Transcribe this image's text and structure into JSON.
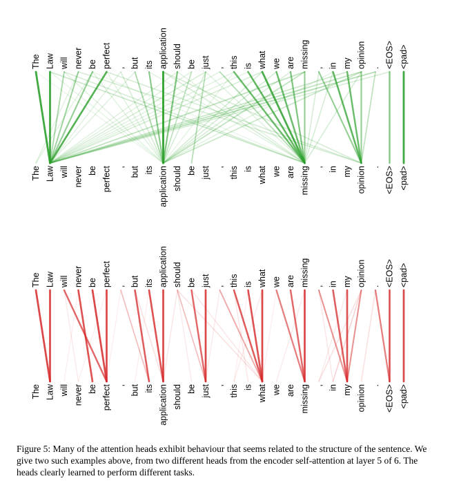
{
  "tokens": [
    "The",
    "Law",
    "will",
    "never",
    "be",
    "perfect",
    ",",
    "but",
    "its",
    "application",
    "should",
    "be",
    "just",
    ",",
    "this",
    "is",
    "what",
    "we",
    "are",
    "missing",
    ",",
    "in",
    "my",
    "opinion",
    ".",
    "<EOS>",
    "<pad>"
  ],
  "caption": "Figure 5: Many of the attention heads exhibit behaviour that seems related to the structure of the sentence. We give two such examples above, from two different heads from the encoder self-attention at layer 5 of 6. The heads clearly learned to perform different tasks.",
  "heads": [
    {
      "color": "#2ca02c",
      "edges": [
        [
          0,
          1,
          0.9
        ],
        [
          1,
          1,
          0.9
        ],
        [
          2,
          1,
          0.4
        ],
        [
          3,
          1,
          0.45
        ],
        [
          4,
          1,
          0.5
        ],
        [
          5,
          1,
          0.8
        ],
        [
          3,
          0,
          0.15
        ],
        [
          4,
          0,
          0.15
        ],
        [
          6,
          9,
          0.2
        ],
        [
          7,
          9,
          0.4
        ],
        [
          8,
          9,
          0.55
        ],
        [
          9,
          9,
          0.95
        ],
        [
          10,
          9,
          0.6
        ],
        [
          12,
          11,
          0.35
        ],
        [
          11,
          9,
          0.3
        ],
        [
          13,
          19,
          0.35
        ],
        [
          14,
          19,
          0.7
        ],
        [
          15,
          19,
          0.75
        ],
        [
          16,
          19,
          0.85
        ],
        [
          17,
          19,
          0.7
        ],
        [
          18,
          19,
          0.6
        ],
        [
          19,
          19,
          0.5
        ],
        [
          20,
          23,
          0.5
        ],
        [
          21,
          23,
          0.75
        ],
        [
          22,
          23,
          0.7
        ],
        [
          23,
          23,
          0.5
        ],
        [
          24,
          23,
          0.3
        ],
        [
          25,
          25,
          0.6
        ],
        [
          26,
          26,
          0.9
        ],
        [
          20,
          19,
          0.2
        ],
        [
          21,
          19,
          0.2
        ],
        [
          23,
          19,
          0.2
        ],
        [
          1,
          19,
          0.25
        ],
        [
          2,
          19,
          0.2
        ],
        [
          3,
          23,
          0.2
        ],
        [
          5,
          23,
          0.2
        ],
        [
          9,
          23,
          0.2
        ],
        [
          9,
          19,
          0.2
        ],
        [
          12,
          1,
          0.2
        ],
        [
          13,
          1,
          0.15
        ],
        [
          14,
          1,
          0.15
        ],
        [
          15,
          1,
          0.15
        ],
        [
          16,
          1,
          0.2
        ],
        [
          17,
          9,
          0.2
        ],
        [
          18,
          9,
          0.2
        ],
        [
          19,
          1,
          0.3
        ],
        [
          19,
          9,
          0.3
        ],
        [
          23,
          1,
          0.3
        ],
        [
          23,
          9,
          0.25
        ],
        [
          24,
          1,
          0.35
        ],
        [
          22,
          1,
          0.25
        ],
        [
          25,
          1,
          0.2
        ],
        [
          2,
          9,
          0.15
        ],
        [
          4,
          9,
          0.15
        ],
        [
          5,
          9,
          0.15
        ],
        [
          12,
          9,
          0.2
        ],
        [
          10,
          1,
          0.15
        ],
        [
          11,
          1,
          0.15
        ],
        [
          6,
          1,
          0.15
        ],
        [
          7,
          1,
          0.15
        ],
        [
          16,
          9,
          0.2
        ],
        [
          21,
          9,
          0.15
        ],
        [
          0,
          9,
          0.1
        ],
        [
          8,
          19,
          0.15
        ],
        [
          10,
          19,
          0.15
        ],
        [
          12,
          19,
          0.15
        ],
        [
          4,
          19,
          0.1
        ],
        [
          1,
          9,
          0.12
        ],
        [
          14,
          9,
          0.12
        ]
      ]
    },
    {
      "color": "#d62728",
      "edges": [
        [
          0,
          1,
          0.85
        ],
        [
          1,
          1,
          0.85
        ],
        [
          2,
          5,
          0.7
        ],
        [
          3,
          4,
          0.8
        ],
        [
          4,
          5,
          0.85
        ],
        [
          5,
          5,
          0.85
        ],
        [
          6,
          8,
          0.3
        ],
        [
          7,
          8,
          0.75
        ],
        [
          8,
          9,
          0.8
        ],
        [
          9,
          9,
          0.85
        ],
        [
          10,
          12,
          0.3
        ],
        [
          11,
          12,
          0.7
        ],
        [
          12,
          12,
          0.85
        ],
        [
          13,
          16,
          0.4
        ],
        [
          14,
          16,
          0.75
        ],
        [
          15,
          16,
          0.8
        ],
        [
          16,
          16,
          0.85
        ],
        [
          17,
          19,
          0.6
        ],
        [
          18,
          19,
          0.7
        ],
        [
          19,
          19,
          0.85
        ],
        [
          20,
          22,
          0.5
        ],
        [
          21,
          22,
          0.75
        ],
        [
          22,
          22,
          0.8
        ],
        [
          23,
          22,
          0.5
        ],
        [
          24,
          25,
          0.6
        ],
        [
          25,
          25,
          0.8
        ],
        [
          26,
          26,
          0.85
        ],
        [
          2,
          3,
          0.1
        ],
        [
          7,
          9,
          0.15
        ],
        [
          10,
          16,
          0.15
        ],
        [
          10,
          9,
          0.12
        ],
        [
          11,
          16,
          0.12
        ],
        [
          13,
          12,
          0.1
        ],
        [
          14,
          15,
          0.12
        ],
        [
          23,
          21,
          0.2
        ],
        [
          23,
          20,
          0.15
        ],
        [
          20,
          21,
          0.12
        ],
        [
          24,
          23,
          0.15
        ],
        [
          3,
          2,
          0.08
        ],
        [
          8,
          7,
          0.08
        ],
        [
          5,
          3,
          0.08
        ],
        [
          16,
          14,
          0.1
        ],
        [
          19,
          17,
          0.1
        ],
        [
          22,
          20,
          0.1
        ],
        [
          6,
          5,
          0.08
        ],
        [
          17,
          16,
          0.08
        ],
        [
          10,
          11,
          0.1
        ],
        [
          15,
          14,
          0.08
        ]
      ]
    }
  ]
}
